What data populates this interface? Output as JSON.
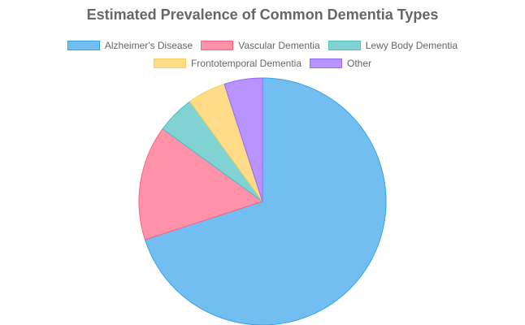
{
  "chart_data": {
    "type": "pie",
    "title": "Estimated Prevalence of Common Dementia Types",
    "categories": [
      "Alzheimer's Disease",
      "Vascular Dementia",
      "Lewy Body Dementia",
      "Frontotemporal Dementia",
      "Other"
    ],
    "values": [
      70,
      15,
      5,
      5,
      5
    ],
    "colors": [
      "#36a2eb",
      "#ff6384",
      "#4bc0c0",
      "#ffcd56",
      "#9966ff"
    ],
    "legend_position": "top"
  }
}
